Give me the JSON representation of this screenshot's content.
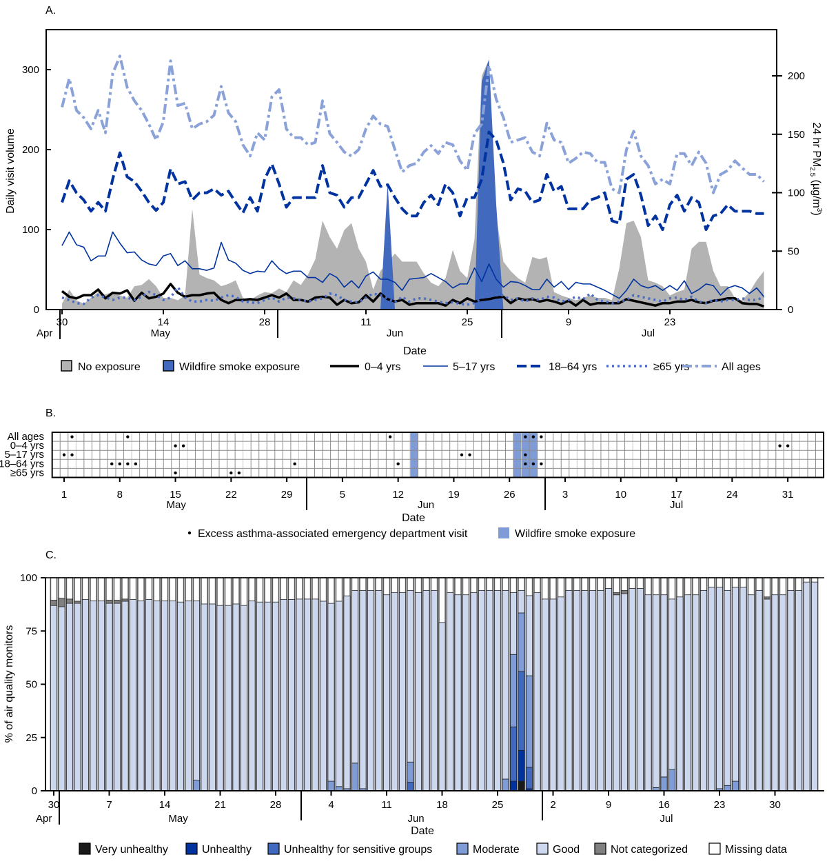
{
  "colors": {
    "no_exposure": "#b3b3b3",
    "smoke": "#4169bd",
    "smoke_light": "#7f9cd6",
    "age_0_4": "#000000",
    "age_5_17": "#0033a0",
    "age_18_64": "#0033a0",
    "age_65": "#4a6cc4",
    "all_ages": "#8aa2d8",
    "very_unhealthy": "#1a1a1a",
    "unhealthy": "#0033a0",
    "usg": "#4169bd",
    "moderate": "#7f9cd6",
    "good": "#cdd7ee",
    "not_categorized": "#808080",
    "missing": "#ffffff"
  },
  "chart_data": [
    {
      "panel": "A.",
      "type": "line",
      "xlabel": "Date",
      "ylabel": "Daily visit volume",
      "y2label": {
        "pre": "24 hr PM",
        "sub": "2.5",
        "mid": " (µg/m",
        "sup": "3",
        "post": ")"
      },
      "ylim": [
        0,
        350
      ],
      "y2lim": [
        0,
        240
      ],
      "yticks": [
        0,
        100,
        200,
        300
      ],
      "y2ticks": [
        0,
        50,
        100,
        150,
        200
      ],
      "x_ticks": [
        {
          "day": 0,
          "label": "30"
        },
        {
          "day": 14,
          "label": "14"
        },
        {
          "day": 28,
          "label": "28"
        },
        {
          "day": 42,
          "label": "11"
        },
        {
          "day": 56,
          "label": "25"
        },
        {
          "day": 70,
          "label": "9"
        },
        {
          "day": 84,
          "label": "23"
        }
      ],
      "months": [
        {
          "label": "Apr",
          "day": -2.2
        },
        {
          "label": "May",
          "day": 13.6
        },
        {
          "label": "Jun",
          "day": 46
        },
        {
          "label": "Jul",
          "day": 81
        }
      ],
      "series": [
        {
          "name": "0–4 yrs",
          "values": [
            23,
            16,
            14,
            18,
            18,
            25,
            14,
            21,
            20,
            24,
            11,
            21,
            14,
            16,
            20,
            32,
            21,
            16,
            18,
            18,
            20,
            21,
            12,
            8,
            12,
            12,
            13,
            12,
            15,
            18,
            15,
            20,
            12,
            12,
            10,
            15,
            16,
            15,
            6,
            12,
            8,
            9,
            18,
            10,
            20,
            13,
            10,
            12,
            6,
            8,
            8,
            8,
            8,
            5,
            12,
            8,
            14,
            10,
            12,
            13,
            15,
            16,
            8,
            14,
            12,
            13,
            10,
            12,
            10,
            7,
            11,
            5,
            12,
            6,
            8,
            8,
            8,
            8,
            13,
            11,
            9,
            7,
            5,
            8,
            8,
            10,
            10,
            12,
            9,
            8,
            11,
            12,
            14,
            14,
            8,
            7,
            7,
            4
          ]
        },
        {
          "name": "5–17 yrs",
          "values": [
            80,
            97,
            81,
            78,
            61,
            67,
            67,
            97,
            83,
            71,
            72,
            62,
            57,
            55,
            67,
            70,
            55,
            61,
            51,
            51,
            49,
            52,
            84,
            62,
            58,
            49,
            45,
            48,
            47,
            61,
            51,
            45,
            48,
            48,
            40,
            40,
            34,
            45,
            40,
            28,
            36,
            27,
            42,
            47,
            38,
            38,
            34,
            24,
            38,
            39,
            40,
            45,
            40,
            35,
            27,
            32,
            32,
            52,
            35,
            57,
            38,
            28,
            35,
            34,
            30,
            25,
            25,
            38,
            28,
            35,
            25,
            34,
            32,
            32,
            28,
            24,
            19,
            14,
            24,
            38,
            30,
            27,
            30,
            24,
            30,
            24,
            36,
            20,
            25,
            32,
            30,
            18,
            27,
            30,
            27,
            20,
            27,
            16
          ]
        },
        {
          "name": "18–64 yrs",
          "values": [
            134,
            161,
            146,
            137,
            123,
            134,
            123,
            163,
            196,
            166,
            160,
            148,
            134,
            124,
            134,
            176,
            157,
            160,
            137,
            146,
            146,
            151,
            143,
            148,
            134,
            121,
            140,
            123,
            163,
            182,
            157,
            128,
            140,
            140,
            140,
            140,
            180,
            146,
            143,
            128,
            140,
            140,
            157,
            174,
            154,
            156,
            140,
            126,
            117,
            117,
            134,
            143,
            131,
            157,
            146,
            117,
            140,
            140,
            163,
            222,
            212,
            183,
            137,
            151,
            148,
            134,
            137,
            169,
            148,
            154,
            126,
            126,
            126,
            137,
            140,
            146,
            111,
            108,
            163,
            169,
            143,
            105,
            117,
            100,
            131,
            143,
            123,
            140,
            134,
            100,
            117,
            120,
            131,
            123,
            123,
            123,
            120,
            120
          ]
        },
        {
          "name": "≥65 yrs",
          "values": [
            15,
            12,
            8,
            7,
            15,
            18,
            15,
            12,
            15,
            15,
            12,
            16,
            22,
            18,
            12,
            15,
            28,
            15,
            10,
            10,
            12,
            11,
            15,
            18,
            16,
            10,
            9,
            8,
            12,
            15,
            10,
            15,
            14,
            12,
            10,
            12,
            14,
            20,
            18,
            12,
            10,
            9,
            15,
            20,
            18,
            14,
            9,
            16,
            10,
            14,
            14,
            12,
            10,
            8,
            9,
            7,
            6,
            8,
            14,
            22,
            18,
            18,
            12,
            14,
            10,
            14,
            12,
            16,
            15,
            10,
            12,
            16,
            13,
            20,
            12,
            10,
            8,
            10,
            12,
            18,
            16,
            14,
            12,
            10,
            14,
            15,
            12,
            16,
            10,
            8,
            12,
            10,
            12,
            12,
            14,
            12,
            12,
            16
          ]
        },
        {
          "name": "All ages",
          "values": [
            253,
            289,
            249,
            240,
            226,
            249,
            221,
            295,
            317,
            278,
            261,
            249,
            232,
            212,
            235,
            311,
            255,
            258,
            226,
            232,
            235,
            243,
            279,
            246,
            235,
            206,
            192,
            221,
            212,
            266,
            275,
            226,
            215,
            215,
            206,
            209,
            261,
            220,
            209,
            197,
            192,
            200,
            226,
            242,
            232,
            229,
            200,
            172,
            180,
            183,
            197,
            205,
            195,
            209,
            206,
            186,
            174,
            220,
            232,
            305,
            263,
            240,
            209,
            212,
            215,
            197,
            192,
            233,
            212,
            209,
            183,
            189,
            197,
            195,
            184,
            184,
            151,
            146,
            200,
            223,
            192,
            180,
            157,
            163,
            157,
            195,
            195,
            180,
            197,
            183,
            146,
            169,
            174,
            186,
            177,
            169,
            169,
            160
          ]
        }
      ],
      "pm25_no_exposure": [
        5,
        17,
        8,
        5,
        10,
        15,
        13,
        15,
        12,
        10,
        20,
        21,
        26,
        20,
        10,
        10,
        8,
        12,
        86,
        30,
        27,
        25,
        20,
        22,
        25,
        10,
        8,
        12,
        15,
        14,
        18,
        15,
        25,
        21,
        30,
        43,
        76,
        62,
        52,
        68,
        74,
        52,
        41,
        17,
        33,
        40,
        48,
        41,
        41,
        41,
        31,
        23,
        20,
        27,
        51,
        33,
        27,
        60,
        200,
        214,
        80,
        41,
        33,
        27,
        23,
        45,
        43,
        45,
        15,
        12,
        10,
        8,
        10,
        12,
        10,
        10,
        8,
        35,
        74,
        76,
        62,
        25,
        23,
        20,
        12,
        15,
        17,
        52,
        58,
        58,
        33,
        20,
        20,
        10,
        8,
        15,
        25,
        33
      ],
      "pm25_wildfire_smoke": [
        {
          "days": [
            44,
            45,
            46
          ],
          "values": [
            0,
            108,
            0
          ]
        },
        {
          "days": [
            57,
            58,
            59,
            60,
            61
          ],
          "values": [
            0,
            195,
            214,
            90,
            0
          ]
        }
      ],
      "legend": [
        "No exposure",
        "Wildfire smoke exposure",
        "0–4 yrs",
        "5–17 yrs",
        "18–64 yrs",
        "≥65 yrs",
        "All ages"
      ]
    },
    {
      "panel": "B.",
      "type": "heatmap",
      "xlabel": "Date",
      "n_days": 97,
      "rows": [
        "All ages",
        "0–4 yrs",
        "5–17 yrs",
        "18–64 yrs",
        "≥65 yrs"
      ],
      "excess_visit_days": [
        [
          2,
          9,
          42,
          59,
          60,
          61
        ],
        [
          15,
          16,
          91,
          92
        ],
        [
          1,
          2,
          51,
          52,
          59
        ],
        [
          7,
          8,
          9,
          10,
          30,
          43,
          59,
          60,
          61
        ],
        [
          15,
          22,
          23
        ]
      ],
      "smoke_days": [
        45,
        58,
        59,
        60
      ],
      "x_ticks": [
        {
          "day": 1,
          "label": "1"
        },
        {
          "day": 8,
          "label": "8"
        },
        {
          "day": 15,
          "label": "15"
        },
        {
          "day": 22,
          "label": "22"
        },
        {
          "day": 29,
          "label": "29"
        },
        {
          "day": 36,
          "label": "5"
        },
        {
          "day": 43,
          "label": "12"
        },
        {
          "day": 50,
          "label": "19"
        },
        {
          "day": 57,
          "label": "26"
        },
        {
          "day": 64,
          "label": "3"
        },
        {
          "day": 71,
          "label": "10"
        },
        {
          "day": 78,
          "label": "17"
        },
        {
          "day": 85,
          "label": "24"
        },
        {
          "day": 92,
          "label": "31"
        }
      ],
      "months": [
        {
          "label": "May",
          "day": 15.1
        },
        {
          "label": "Jun",
          "day": 46.5
        },
        {
          "label": "Jul",
          "day": 78
        }
      ],
      "legend": [
        "Excess asthma-associated emergency department visit",
        "Wildfire smoke exposure"
      ]
    },
    {
      "panel": "C.",
      "type": "bar",
      "stacked": true,
      "xlabel": "Date",
      "ylabel": "% of air quality monitors",
      "ylim": [
        0,
        100
      ],
      "yticks": [
        0,
        25,
        50,
        75,
        100
      ],
      "x_ticks": [
        {
          "day": 0,
          "label": "30"
        },
        {
          "day": 7,
          "label": "7"
        },
        {
          "day": 14,
          "label": "14"
        },
        {
          "day": 21,
          "label": "21"
        },
        {
          "day": 28,
          "label": "28"
        },
        {
          "day": 35,
          "label": "4"
        },
        {
          "day": 42,
          "label": "11"
        },
        {
          "day": 49,
          "label": "18"
        },
        {
          "day": 56,
          "label": "25"
        },
        {
          "day": 63,
          "label": "2"
        },
        {
          "day": 70,
          "label": "9"
        },
        {
          "day": 77,
          "label": "16"
        },
        {
          "day": 84,
          "label": "23"
        },
        {
          "day": 91,
          "label": "30"
        }
      ],
      "months": [
        {
          "label": "Apr",
          "day": -1
        },
        {
          "label": "May",
          "day": 15.7
        },
        {
          "label": "Jun",
          "day": 45.7
        },
        {
          "label": "Jul",
          "day": 77.3
        }
      ],
      "legend": [
        "Very unhealthy",
        "Unhealthy",
        "Unhealthy for sensitive groups",
        "Moderate",
        "Good",
        "Not categorized",
        "Missing data"
      ],
      "good": [
        87,
        86.4,
        88,
        88,
        89.8,
        89.1,
        89.1,
        88,
        88,
        89,
        89.8,
        89.1,
        89.8,
        89.1,
        89.1,
        89.1,
        88.6,
        89.1,
        84.1,
        87.7,
        87.7,
        87,
        87,
        87.7,
        87,
        89.1,
        88.6,
        88.6,
        88.6,
        89.8,
        89.8,
        90,
        90,
        90,
        89,
        83.5,
        87,
        90.5,
        81,
        93,
        94,
        94,
        92,
        93,
        93,
        80.5,
        93,
        94,
        94,
        79,
        93,
        92,
        92,
        93,
        94,
        94,
        94,
        88.5,
        29,
        10.5,
        37.6,
        93,
        90,
        90,
        91,
        94,
        94,
        94,
        94,
        94,
        95,
        92,
        92.5,
        95,
        95,
        92,
        90.5,
        85.5,
        80,
        91,
        92,
        92,
        94,
        95.5,
        94.5,
        91.5,
        91,
        95.5,
        92,
        94,
        90,
        92,
        92,
        94,
        94,
        98,
        98
      ],
      "moderate": {
        "18": 5,
        "35": 4.5,
        "36": 2,
        "37": 1,
        "38": 13,
        "39": 1,
        "45": 9.5,
        "57": 5.5,
        "58": 34,
        "59": 27.5,
        "60": 43,
        "76": 1.5,
        "77": 6.5,
        "78": 10,
        "84": 1,
        "85": 2.5,
        "86": 4.5
      },
      "usg": {
        "45": 4,
        "58": 25.5,
        "59": 37,
        "60": 10
      },
      "unhealthy": {
        "58": 4.5,
        "59": 14.5,
        "60": 1
      },
      "very_unhealthy": {
        "59": 4.5
      },
      "not_categorized": {
        "0": 2.5,
        "1": 4,
        "2": 2,
        "3": 1,
        "7": 1.5,
        "8": 1.5,
        "9": 1,
        "71": 1,
        "72": 1.5,
        "90": 1
      }
    }
  ]
}
